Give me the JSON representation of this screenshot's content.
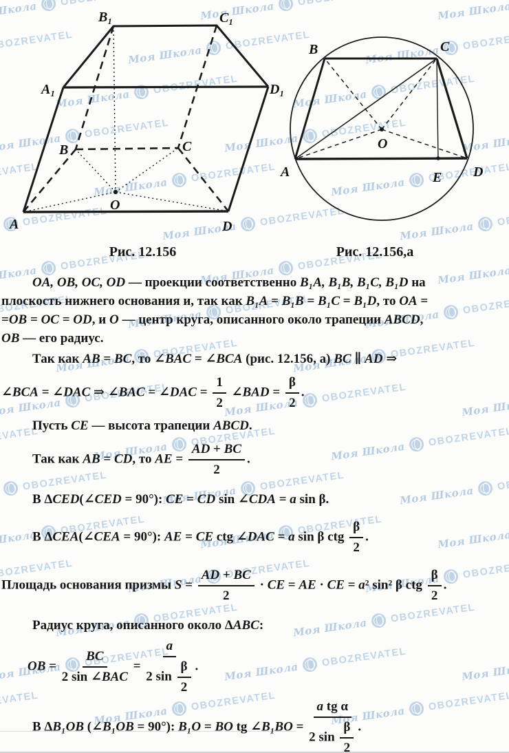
{
  "watermark": {
    "script_text": "Моя Школа",
    "brand_text": "OBOZREVATEL",
    "color": "#92b4d8"
  },
  "figures": {
    "fig1": {
      "caption": "Рис. 12.156",
      "labels": {
        "A1": "A₁",
        "B1": "B₁",
        "C1": "C₁",
        "D1": "D₁",
        "A": "A",
        "B": "B",
        "C": "C",
        "D": "D",
        "O": "O"
      }
    },
    "fig2": {
      "caption": "Рис. 12.156,а",
      "labels": {
        "A": "A",
        "B": "B",
        "C": "C",
        "D": "D",
        "O": "O",
        "E": "E"
      }
    }
  },
  "content": {
    "p1l1": [
      {
        "i": "OA, OB, OC, OD"
      },
      " — проекции соответственно ",
      {
        "i": "B₁A, B₁B, B₁C, B₁D"
      },
      " на"
    ],
    "p1l2": [
      "плоскость нижнего основания и, так как ",
      {
        "i": "B₁A"
      },
      " = ",
      {
        "i": "B₁B"
      },
      " = ",
      {
        "i": "B₁C"
      },
      " = ",
      {
        "i": "B₁D"
      },
      ", то ",
      {
        "i": "OA"
      },
      " ="
    ],
    "p1l3": [
      "=",
      {
        "i": "OB"
      },
      " = ",
      {
        "i": "OC"
      },
      " = ",
      {
        "i": "OD"
      },
      ", и ",
      {
        "i": "O"
      },
      " — центр круга, описанного около трапеции ",
      {
        "i": "ABCD"
      },
      ","
    ],
    "p1l4": [
      {
        "i": "OB"
      },
      " — его радиус."
    ],
    "p2l1": [
      "Так как ",
      {
        "i": "AB"
      },
      " = ",
      {
        "i": "BC"
      },
      ", то ∠",
      {
        "i": "BAC"
      },
      " = ∠",
      {
        "i": "BCA"
      },
      " (рис. 12.156, а) ",
      {
        "i": "BC"
      },
      " ∥ ",
      {
        "i": "AD"
      },
      " ⇒"
    ],
    "p2l2": [
      "∠",
      {
        "i": "BCA"
      },
      " = ∠",
      {
        "i": "DAC"
      },
      " ⇒ ∠",
      {
        "i": "BAC"
      },
      " = ∠",
      {
        "i": "DAC"
      },
      " = ",
      {
        "f": {
          "n": [
            "1"
          ],
          "d": [
            "2"
          ]
        }
      },
      " ∠",
      {
        "i": "BAD"
      },
      " = ",
      {
        "f": {
          "n": [
            "β"
          ],
          "d": [
            "2"
          ]
        }
      },
      "."
    ],
    "p3": [
      "Пусть ",
      {
        "i": "CE"
      },
      " — высота трапеции ",
      {
        "i": "ABCD"
      },
      "."
    ],
    "p4": [
      "Так как ",
      {
        "i": "AB"
      },
      " = ",
      {
        "i": "CD"
      },
      ", то ",
      {
        "i": "AE"
      },
      " = ",
      {
        "f": {
          "n": [
            {
              "i": "AD"
            },
            " + ",
            {
              "i": "BC"
            }
          ],
          "d": [
            "2"
          ]
        }
      },
      "."
    ],
    "p5": [
      "В Δ",
      {
        "i": "CED"
      },
      "(∠",
      {
        "i": "CED"
      },
      " = 90°): ",
      {
        "i": "CE"
      },
      " = ",
      {
        "i": "CD"
      },
      " sin ∠",
      {
        "i": "CDA"
      },
      " = ",
      {
        "i": "a"
      },
      " sin β."
    ],
    "p6": [
      "В Δ",
      {
        "i": "CEA"
      },
      "(∠",
      {
        "i": "CEA"
      },
      " = 90°): ",
      {
        "i": "AE"
      },
      " = ",
      {
        "i": "CE"
      },
      " ctg ∠",
      {
        "i": "DAC"
      },
      " = ",
      {
        "i": "a"
      },
      " sin β ctg ",
      {
        "f": {
          "n": [
            "β"
          ],
          "d": [
            "2"
          ]
        }
      },
      "."
    ],
    "p7": [
      "Площадь основания призмы ",
      {
        "i": "S"
      },
      " = ",
      {
        "f": {
          "n": [
            {
              "i": "AD"
            },
            " + ",
            {
              "i": "BC"
            }
          ],
          "d": [
            "2"
          ]
        }
      },
      " · ",
      {
        "i": "CE"
      },
      " = ",
      {
        "i": "AE"
      },
      " · ",
      {
        "i": "CE"
      },
      " = ",
      {
        "i": "a"
      },
      "² sin² β ctg ",
      {
        "f": {
          "n": [
            "β"
          ],
          "d": [
            "2"
          ]
        }
      },
      "."
    ],
    "p8": [
      "Радиус круга, описанного около Δ",
      {
        "i": "ABC"
      },
      ":"
    ],
    "p9": [
      {
        "i": "OB"
      },
      " = ",
      {
        "f": {
          "n": [
            {
              "i": "BC"
            }
          ],
          "d": [
            "2 sin ∠",
            {
              "i": "BAC"
            }
          ]
        }
      },
      " = ",
      {
        "f": {
          "n": [
            {
              "i": "a"
            }
          ],
          "d": [
            "2 sin ",
            {
              "f": {
                "n": [
                  "β"
                ],
                "d": [
                  "2"
                ]
              }
            }
          ]
        }
      },
      "."
    ],
    "p10": [
      "В Δ",
      {
        "i": "B₁OB"
      },
      " (∠",
      {
        "i": "B₁OB"
      },
      " = 90°): ",
      {
        "i": "B₁O"
      },
      " = ",
      {
        "i": "BO"
      },
      " tg ∠",
      {
        "i": "B₁BO"
      },
      " = ",
      {
        "f": {
          "n": [
            {
              "i": "a"
            },
            " tg α"
          ],
          "d": [
            "2 sin ",
            {
              "f": {
                "n": [
                  "β"
                ],
                "d": [
                  "2"
                ]
              }
            }
          ]
        }
      },
      "."
    ]
  }
}
